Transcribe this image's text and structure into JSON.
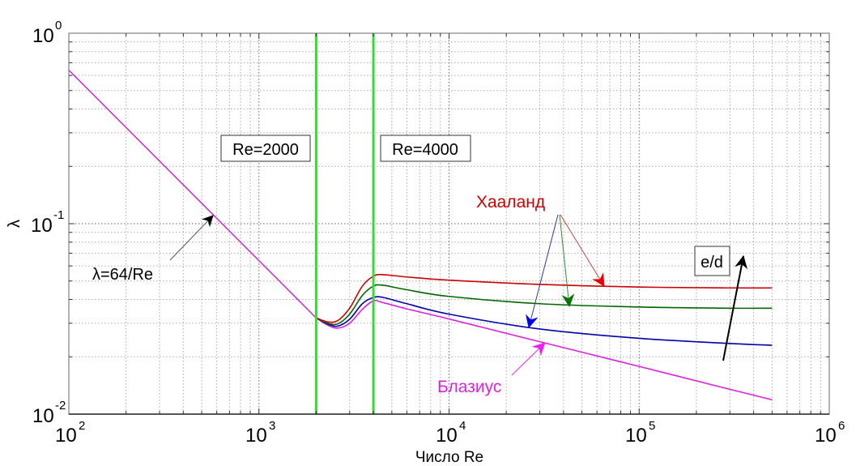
{
  "chart_data": {
    "type": "line",
    "title": "",
    "xlabel": "Число Re",
    "ylabel": "λ",
    "xscale": "log",
    "yscale": "log",
    "xlim": [
      100,
      1000000
    ],
    "ylim": [
      0.01,
      1
    ],
    "grid": true,
    "x_ticks": [
      {
        "base": "10",
        "exp": "2",
        "value": 100
      },
      {
        "base": "10",
        "exp": "3",
        "value": 1000
      },
      {
        "base": "10",
        "exp": "4",
        "value": 10000
      },
      {
        "base": "10",
        "exp": "5",
        "value": 100000
      },
      {
        "base": "10",
        "exp": "6",
        "value": 1000000
      }
    ],
    "y_ticks": [
      {
        "base": "10",
        "exp": "0",
        "value": 1
      },
      {
        "base": "10",
        "exp": "-1",
        "value": 0.1
      },
      {
        "base": "10",
        "exp": "-2",
        "value": 0.01
      }
    ],
    "series": [
      {
        "name": "Laminar λ=64/Re",
        "color": "#cc33cc",
        "x": [
          100,
          200,
          500,
          1000,
          2000
        ],
        "y": [
          0.64,
          0.32,
          0.128,
          0.064,
          0.032
        ]
      },
      {
        "name": "Хааланд (e/d high)",
        "color": "#cc0000",
        "x": [
          2000,
          2300,
          2600,
          3000,
          3500,
          4000,
          4500,
          6000,
          10000,
          30000,
          100000,
          300000,
          500000
        ],
        "y": [
          0.032,
          0.0305,
          0.031,
          0.036,
          0.047,
          0.053,
          0.054,
          0.0525,
          0.0505,
          0.048,
          0.0465,
          0.046,
          0.046
        ]
      },
      {
        "name": "Хааланд (e/d medium)",
        "color": "#006600",
        "x": [
          2000,
          2300,
          2600,
          3000,
          3500,
          4000,
          4500,
          6000,
          10000,
          30000,
          100000,
          300000,
          500000
        ],
        "y": [
          0.032,
          0.03,
          0.0298,
          0.0335,
          0.042,
          0.047,
          0.0475,
          0.045,
          0.0415,
          0.038,
          0.0365,
          0.036,
          0.036
        ]
      },
      {
        "name": "Хааланд (e/d low)",
        "color": "#0000aa",
        "x": [
          2000,
          2300,
          2600,
          3000,
          3500,
          4000,
          4500,
          6000,
          10000,
          30000,
          100000,
          300000,
          500000
        ],
        "y": [
          0.032,
          0.0297,
          0.029,
          0.0315,
          0.038,
          0.041,
          0.041,
          0.038,
          0.0335,
          0.028,
          0.025,
          0.0235,
          0.023
        ]
      },
      {
        "name": "Блазиус",
        "color": "#dd22dd",
        "x": [
          2000,
          2300,
          2600,
          3000,
          3500,
          4000,
          4500,
          6000,
          10000,
          30000,
          100000,
          300000,
          500000
        ],
        "y": [
          0.032,
          0.0293,
          0.0283,
          0.03,
          0.0355,
          0.0393,
          0.0385,
          0.0357,
          0.0316,
          0.024,
          0.0178,
          0.0135,
          0.0119
        ]
      }
    ],
    "vertical_lines": [
      {
        "x": 2000,
        "color": "#33dd33",
        "label": "Re=2000"
      },
      {
        "x": 4000,
        "color": "#33dd33",
        "label": "Re=4000"
      }
    ],
    "annotations": [
      {
        "id": "laminar",
        "text": "λ=64/Re",
        "color": "#000000",
        "arrow_color": "#555555",
        "arrow_to": {
          "x": 600,
          "y": 0.107
        }
      },
      {
        "id": "haaland",
        "text": "Хааланд",
        "color": "#cc0000"
      },
      {
        "id": "blasius",
        "text": "Блазиус",
        "color": "#dd22dd",
        "arrow_color": "#dd22dd",
        "arrow_to": {
          "x": 21000,
          "y": 0.0228
        }
      },
      {
        "id": "ed",
        "text": "e/d",
        "color": "#000000",
        "boxed": true
      }
    ]
  }
}
